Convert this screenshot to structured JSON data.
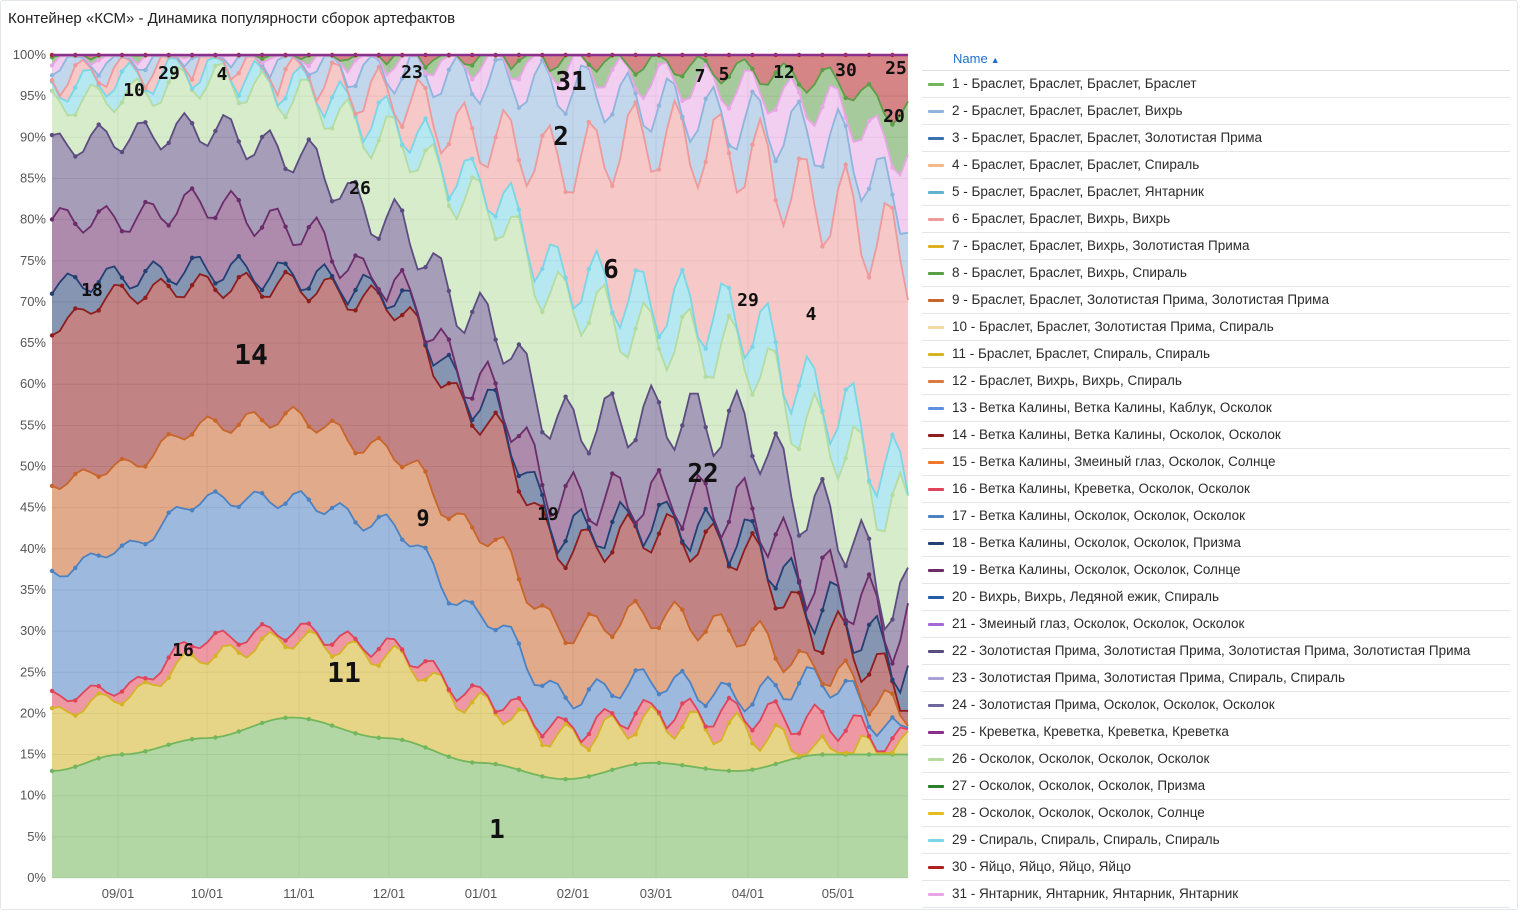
{
  "title": "Контейнер «КСМ» - Динамика популярности сборок артефактов",
  "legend_header": "Name",
  "legend_sort_icon": "sort-ascending-icon",
  "chart_data": {
    "type": "area",
    "stacked": "percent",
    "y_ticks": [
      "0%",
      "5%",
      "10%",
      "15%",
      "20%",
      "25%",
      "30%",
      "35%",
      "40%",
      "45%",
      "50%",
      "55%",
      "60%",
      "65%",
      "70%",
      "75%",
      "80%",
      "85%",
      "90%",
      "95%",
      "100%"
    ],
    "x_ticks": [
      "09/01",
      "10/01",
      "11/01",
      "12/01",
      "01/01",
      "02/01",
      "03/01",
      "04/01",
      "05/01"
    ],
    "grid": true,
    "legend_position": "right",
    "series": [
      {
        "id": "1",
        "name": "1 - Браслет, Браслет, Браслет, Браслет",
        "color": "#73b65b"
      },
      {
        "id": "2",
        "name": "2 - Браслет, Браслет, Браслет, Вихрь",
        "color": "#8fb5dd"
      },
      {
        "id": "3",
        "name": "3 - Браслет, Браслет, Браслет, Золотистая Прима",
        "color": "#3a72b0"
      },
      {
        "id": "4",
        "name": "4 - Браслет, Браслет, Браслет, Спираль",
        "color": "#f3b98a"
      },
      {
        "id": "5",
        "name": "5 - Браслет, Браслет, Браслет, Янтарник",
        "color": "#62b3cc"
      },
      {
        "id": "6",
        "name": "6 - Браслет, Браслет, Вихрь, Вихрь",
        "color": "#ee9a9a"
      },
      {
        "id": "7",
        "name": "7 - Браслет, Браслет, Вихрь, Золотистая Прима",
        "color": "#ddb01e"
      },
      {
        "id": "8",
        "name": "8 - Браслет, Браслет, Вихрь, Спираль",
        "color": "#5c9e48"
      },
      {
        "id": "9",
        "name": "9 - Браслет, Браслет, Золотистая Прима, Золотистая Прима",
        "color": "#c8652a"
      },
      {
        "id": "10",
        "name": "10 - Браслет, Браслет, Золотистая Прима, Спираль",
        "color": "#f0d9a4"
      },
      {
        "id": "11",
        "name": "11 - Браслет, Браслет, Спираль, Спираль",
        "color": "#d4b325"
      },
      {
        "id": "12",
        "name": "12 - Браслет, Вихрь, Вихрь, Спираль",
        "color": "#dc7a44"
      },
      {
        "id": "13",
        "name": "13 - Ветка Калины, Ветка Калины, Каблук, Осколок",
        "color": "#5d8fe0"
      },
      {
        "id": "14",
        "name": "14 - Ветка Калины, Ветка Калины, Осколок, Осколок",
        "color": "#8e1d1d"
      },
      {
        "id": "15",
        "name": "15 - Ветка Калины, Змеиный глаз, Осколок, Солнце",
        "color": "#f0782c"
      },
      {
        "id": "16",
        "name": "16 - Ветка Калины, Креветка, Осколок, Осколок",
        "color": "#e0445a"
      },
      {
        "id": "17",
        "name": "17 - Ветка Калины, Осколок, Осколок, Осколок",
        "color": "#4d82c2"
      },
      {
        "id": "18",
        "name": "18 - Ветка Калины, Осколок, Осколок, Призма",
        "color": "#233f73"
      },
      {
        "id": "19",
        "name": "19 - Ветка Калины, Осколок, Осколок, Солнце",
        "color": "#6b2c6a"
      },
      {
        "id": "20",
        "name": "20 - Вихрь, Вихрь, Ледяной ежик, Спираль",
        "color": "#245ca6"
      },
      {
        "id": "21",
        "name": "21 - Змеиный глаз, Осколок, Осколок, Осколок",
        "color": "#a66ad6"
      },
      {
        "id": "22",
        "name": "22 - Золотистая Прима, Золотистая Прима, Золотистая Прима, Золотистая Прима",
        "color": "#5c4d80"
      },
      {
        "id": "23",
        "name": "23 - Золотистая Прима, Золотистая Прима, Спираль, Спираль",
        "color": "#a9a0d6"
      },
      {
        "id": "24",
        "name": "24 - Золотистая Прима, Осколок, Осколок, Осколок",
        "color": "#6d659e"
      },
      {
        "id": "25",
        "name": "25 - Креветка, Креветка, Креветка, Креветка",
        "color": "#8c2e8c"
      },
      {
        "id": "26",
        "name": "26 - Осколок, Осколок, Осколок, Осколок",
        "color": "#b4dca0"
      },
      {
        "id": "27",
        "name": "27 - Осколок, Осколок, Осколок, Призма",
        "color": "#2a7d2a"
      },
      {
        "id": "28",
        "name": "28 - Осколок, Осколок, Осколок, Солнце",
        "color": "#e6bf1e"
      },
      {
        "id": "29",
        "name": "29 - Спираль, Спираль, Спираль, Спираль",
        "color": "#7ad6e6"
      },
      {
        "id": "30",
        "name": "30 - Яйцо, Яйцо, Яйцо, Яйцо",
        "color": "#b32020"
      },
      {
        "id": "31",
        "name": "31 - Янтарник, Янтарник, Янтарник, Янтарник",
        "color": "#e8a6e6"
      }
    ],
    "area_labels": [
      "1",
      "2",
      "4",
      "4",
      "5",
      "6",
      "7",
      "9",
      "10",
      "11",
      "12",
      "14",
      "16",
      "18",
      "19",
      "20",
      "22",
      "23",
      "25",
      "26",
      "29",
      "29",
      "30",
      "31"
    ]
  }
}
